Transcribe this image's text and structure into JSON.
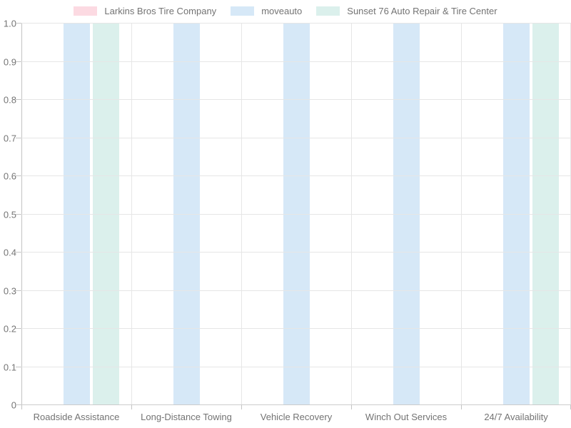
{
  "chart_data": {
    "type": "bar",
    "categories": [
      "Roadside Assistance",
      "Long-Distance Towing",
      "Vehicle Recovery",
      "Winch Out Services",
      "24/7 Availability"
    ],
    "series": [
      {
        "name": "Larkins Bros Tire Company",
        "color": "#fcdae2",
        "values": [
          0,
          0,
          0,
          0,
          0
        ]
      },
      {
        "name": "moveauto",
        "color": "#d6e8f7",
        "values": [
          1,
          1,
          1,
          1,
          1
        ]
      },
      {
        "name": "Sunset 76 Auto Repair & Tire Center",
        "color": "#dbf0ec",
        "values": [
          1,
          0,
          0,
          0,
          1
        ]
      }
    ],
    "title": "",
    "xlabel": "",
    "ylabel": "",
    "ylim": [
      0,
      1
    ],
    "ytick_labels": [
      "0",
      "0.1",
      "0.2",
      "0.3",
      "0.4",
      "0.5",
      "0.6",
      "0.7",
      "0.8",
      "0.9",
      "1.0"
    ],
    "grid": true,
    "legend_position": "top"
  },
  "colors": {
    "grid": "#e6e6e6",
    "axis": "#c4c4c4",
    "baseline": "#cccccc",
    "text": "#737373",
    "background": "#ffffff"
  }
}
